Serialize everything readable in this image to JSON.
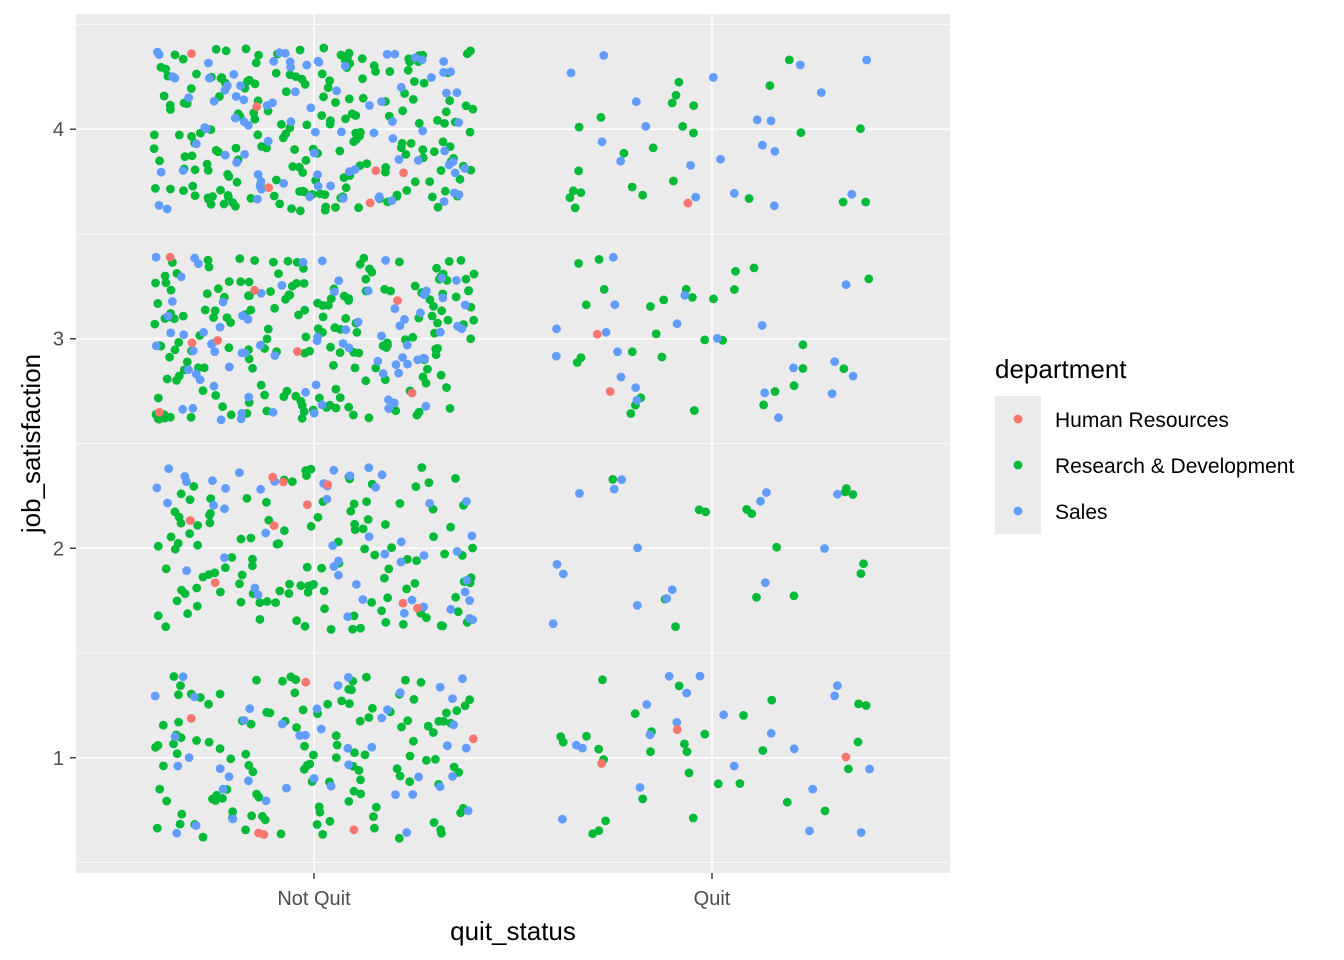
{
  "chart_data": {
    "type": "scatter",
    "jitter": true,
    "xlabel": "quit_status",
    "ylabel": "job_satisfaction",
    "categories": [
      "Not Quit",
      "Quit"
    ],
    "y_ticks": [
      1,
      2,
      3,
      4
    ],
    "ylim": [
      0.45,
      4.55
    ],
    "grid": true,
    "legend": {
      "title": "department",
      "position": "right"
    },
    "series": [
      {
        "name": "Human Resources",
        "color": "#F8766D",
        "points": [
          {
            "x": "Not Quit",
            "y": 4,
            "n": 6
          },
          {
            "x": "Not Quit",
            "y": 3,
            "n": 8
          },
          {
            "x": "Not Quit",
            "y": 2,
            "n": 9
          },
          {
            "x": "Not Quit",
            "y": 1,
            "n": 6
          },
          {
            "x": "Quit",
            "y": 4,
            "n": 1
          },
          {
            "x": "Quit",
            "y": 3,
            "n": 2
          },
          {
            "x": "Quit",
            "y": 1,
            "n": 3
          }
        ]
      },
      {
        "name": "Research & Development",
        "color": "#00BA38",
        "points": [
          {
            "x": "Not Quit",
            "y": 4,
            "n": 200
          },
          {
            "x": "Not Quit",
            "y": 3,
            "n": 190
          },
          {
            "x": "Not Quit",
            "y": 2,
            "n": 125
          },
          {
            "x": "Not Quit",
            "y": 1,
            "n": 125
          },
          {
            "x": "Quit",
            "y": 4,
            "n": 25
          },
          {
            "x": "Quit",
            "y": 3,
            "n": 30
          },
          {
            "x": "Quit",
            "y": 2,
            "n": 15
          },
          {
            "x": "Quit",
            "y": 1,
            "n": 30
          }
        ]
      },
      {
        "name": "Sales",
        "color": "#619CFF",
        "points": [
          {
            "x": "Not Quit",
            "y": 4,
            "n": 90
          },
          {
            "x": "Not Quit",
            "y": 3,
            "n": 80
          },
          {
            "x": "Not Quit",
            "y": 2,
            "n": 50
          },
          {
            "x": "Not Quit",
            "y": 1,
            "n": 45
          },
          {
            "x": "Quit",
            "y": 4,
            "n": 20
          },
          {
            "x": "Quit",
            "y": 3,
            "n": 20
          },
          {
            "x": "Quit",
            "y": 2,
            "n": 15
          },
          {
            "x": "Quit",
            "y": 1,
            "n": 20
          }
        ]
      }
    ]
  }
}
